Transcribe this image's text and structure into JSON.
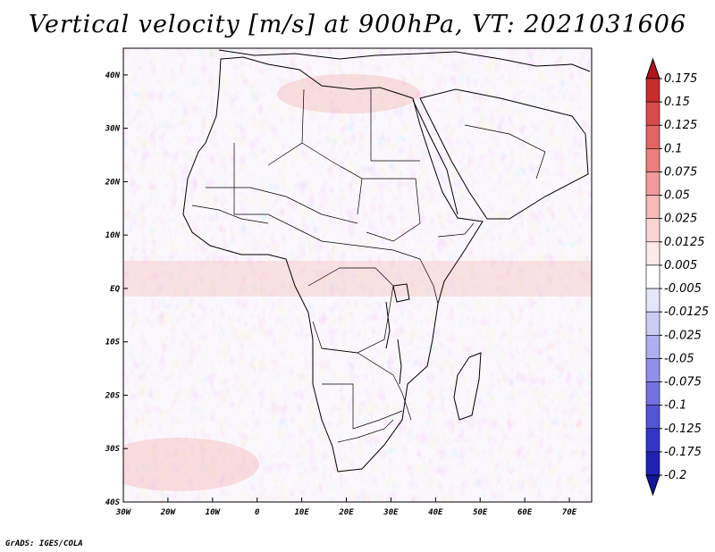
{
  "title": "Vertical velocity [m/s] at 900hPa, VT: 2021031606",
  "footer": "GrADS: IGES/COLA",
  "map": {
    "projection": "latlon",
    "lon_range": [
      -30,
      75
    ],
    "lat_range": [
      -40,
      45
    ],
    "lon_ticks": [
      {
        "value": -30,
        "label": "30W"
      },
      {
        "value": -20,
        "label": "20W"
      },
      {
        "value": -10,
        "label": "10W"
      },
      {
        "value": 0,
        "label": "0"
      },
      {
        "value": 10,
        "label": "10E"
      },
      {
        "value": 20,
        "label": "20E"
      },
      {
        "value": 30,
        "label": "30E"
      },
      {
        "value": 40,
        "label": "40E"
      },
      {
        "value": 50,
        "label": "50E"
      },
      {
        "value": 60,
        "label": "60E"
      },
      {
        "value": 70,
        "label": "70E"
      }
    ],
    "lat_ticks": [
      {
        "value": 40,
        "label": "40N"
      },
      {
        "value": 30,
        "label": "30N"
      },
      {
        "value": 20,
        "label": "20N"
      },
      {
        "value": 10,
        "label": "10N"
      },
      {
        "value": 0,
        "label": "EQ"
      },
      {
        "value": -10,
        "label": "10S"
      },
      {
        "value": -20,
        "label": "20S"
      },
      {
        "value": -30,
        "label": "30S"
      },
      {
        "value": -40,
        "label": "40S"
      }
    ],
    "field": "vertical velocity, red = positive, blue = negative"
  },
  "colorbar": {
    "labels": [
      "0.175",
      "0.15",
      "0.125",
      "0.1",
      "0.075",
      "0.05",
      "0.025",
      "0.0125",
      "0.005",
      "-0.005",
      "-0.0125",
      "-0.025",
      "-0.05",
      "-0.075",
      "-0.1",
      "-0.125",
      "-0.175",
      "-0.2"
    ],
    "colors": [
      "#b3141a",
      "#c82d2d",
      "#d94a4a",
      "#e46363",
      "#ec7e7e",
      "#f29a9a",
      "#f7b8b8",
      "#fbd4d4",
      "#fdeaea",
      "#ffffff",
      "#e6e6fb",
      "#ccccf5",
      "#aeaef0",
      "#9090ea",
      "#7272e2",
      "#5454d6",
      "#3535c8",
      "#2020b4",
      "#1414a0"
    ]
  }
}
